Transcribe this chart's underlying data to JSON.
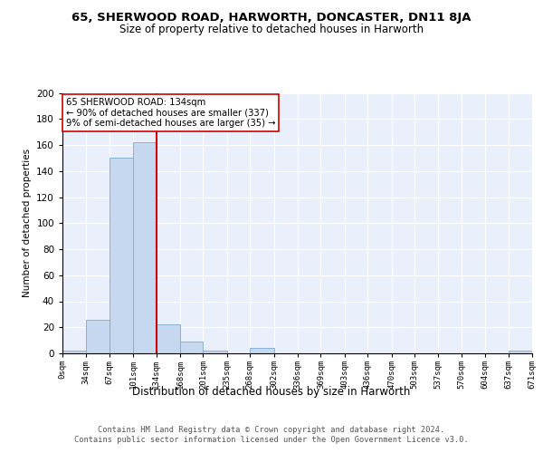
{
  "title1": "65, SHERWOOD ROAD, HARWORTH, DONCASTER, DN11 8JA",
  "title2": "Size of property relative to detached houses in Harworth",
  "xlabel": "Distribution of detached houses by size in Harworth",
  "ylabel": "Number of detached properties",
  "bin_edges": [
    0,
    34,
    67,
    101,
    134,
    168,
    201,
    235,
    268,
    302,
    336,
    369,
    403,
    436,
    470,
    503,
    537,
    570,
    604,
    637,
    671
  ],
  "bin_counts": [
    2,
    26,
    150,
    162,
    22,
    9,
    2,
    0,
    4,
    0,
    0,
    0,
    0,
    0,
    0,
    0,
    0,
    0,
    0,
    2
  ],
  "bar_color": "#c5d8f0",
  "bar_edge_color": "#7aaad0",
  "vline_x": 134,
  "vline_color": "#cc0000",
  "annotation_text": "65 SHERWOOD ROAD: 134sqm\n← 90% of detached houses are smaller (337)\n9% of semi-detached houses are larger (35) →",
  "annotation_box_color": "#ffffff",
  "annotation_box_edge": "#cc0000",
  "footer_text": "Contains HM Land Registry data © Crown copyright and database right 2024.\nContains public sector information licensed under the Open Government Licence v3.0.",
  "tick_labels": [
    "0sqm",
    "34sqm",
    "67sqm",
    "101sqm",
    "134sqm",
    "168sqm",
    "201sqm",
    "235sqm",
    "268sqm",
    "302sqm",
    "336sqm",
    "369sqm",
    "403sqm",
    "436sqm",
    "470sqm",
    "503sqm",
    "537sqm",
    "570sqm",
    "604sqm",
    "637sqm",
    "671sqm"
  ],
  "ylim": [
    0,
    200
  ],
  "yticks": [
    0,
    20,
    40,
    60,
    80,
    100,
    120,
    140,
    160,
    180,
    200
  ],
  "bg_color": "#eaf0fb"
}
